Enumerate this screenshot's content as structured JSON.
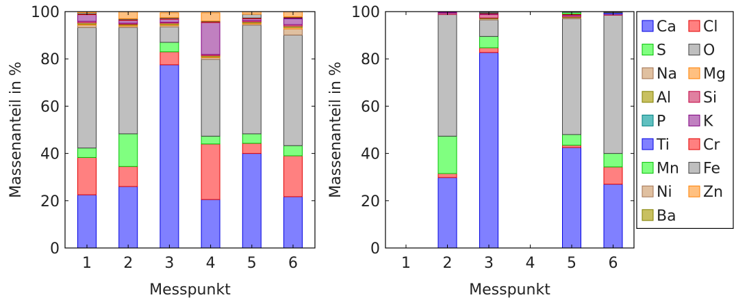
{
  "chart_data": [
    {
      "type": "bar",
      "stacked": true,
      "xlabel": "Messpunkt",
      "ylabel": "Massenanteil in %",
      "ylim": [
        0,
        100
      ],
      "yticks": [
        "0",
        "20",
        "40",
        "60",
        "80",
        "100"
      ],
      "categories": [
        "1",
        "2",
        "3",
        "4",
        "5",
        "6"
      ],
      "series": [
        {
          "name": "Ca",
          "values": [
            22.5,
            26,
            77.5,
            20.5,
            40,
            21.7
          ]
        },
        {
          "name": "Cl",
          "values": [
            15.8,
            8.5,
            5.5,
            23.5,
            4.3,
            17.3
          ]
        },
        {
          "name": "S",
          "values": [
            4,
            13.8,
            4,
            3.3,
            4,
            4.3
          ]
        },
        {
          "name": "O",
          "values": [
            51,
            45,
            6.5,
            32.5,
            46,
            46.8
          ]
        },
        {
          "name": "Na",
          "values": [
            1,
            0.6,
            0.7,
            0.8,
            0.5,
            2.6
          ]
        },
        {
          "name": "Mg",
          "values": [
            0.4,
            0.4,
            0.3,
            0.3,
            0.4,
            0.6
          ]
        },
        {
          "name": "Al",
          "values": [
            0.6,
            0.4,
            0.6,
            0.5,
            0.5,
            0.6
          ]
        },
        {
          "name": "Si",
          "values": [
            0.6,
            0.4,
            0.4,
            0.5,
            0.5,
            0.6
          ]
        },
        {
          "name": "P",
          "values": [
            0,
            0,
            0,
            0,
            0,
            0
          ]
        },
        {
          "name": "K",
          "values": [
            2.8,
            1.2,
            1.3,
            13.5,
            0.8,
            2.5
          ]
        },
        {
          "name": "Ti",
          "values": [
            0,
            0,
            0,
            0,
            0,
            0.2
          ]
        },
        {
          "name": "Cr",
          "values": [
            0.3,
            0.3,
            0.3,
            0.3,
            0.3,
            0.3
          ]
        },
        {
          "name": "Mn",
          "values": [
            0,
            0,
            0,
            0,
            0,
            0
          ]
        },
        {
          "name": "Fe",
          "values": [
            0.5,
            0.4,
            0.4,
            0.3,
            1.6,
            0.3
          ]
        },
        {
          "name": "Ni",
          "values": [
            0,
            0,
            0,
            0,
            0,
            0
          ]
        },
        {
          "name": "Zn",
          "values": [
            0.5,
            3,
            2,
            3.5,
            1.1,
            2.2
          ]
        },
        {
          "name": "Ba",
          "values": [
            0,
            0,
            0,
            0,
            0,
            0
          ]
        }
      ]
    },
    {
      "type": "bar",
      "stacked": true,
      "xlabel": "Messpunkt",
      "ylabel": "Massenanteil in %",
      "ylim": [
        0,
        100
      ],
      "yticks": [
        "0",
        "20",
        "40",
        "60",
        "80",
        "100"
      ],
      "categories": [
        "1",
        "2",
        "3",
        "4",
        "5",
        "6"
      ],
      "series": [
        {
          "name": "Ca",
          "values": [
            0,
            29.8,
            82.7,
            0,
            42.5,
            27
          ]
        },
        {
          "name": "Cl",
          "values": [
            0,
            1.7,
            2,
            0,
            1,
            7.3
          ]
        },
        {
          "name": "S",
          "values": [
            0,
            15.8,
            4.8,
            0,
            4.5,
            5.7
          ]
        },
        {
          "name": "O",
          "values": [
            0,
            51.5,
            7,
            0,
            49,
            58.5
          ]
        },
        {
          "name": "Na",
          "values": [
            0,
            0,
            0.5,
            0,
            0.5,
            0
          ]
        },
        {
          "name": "Mg",
          "values": [
            0,
            0,
            0,
            0,
            0,
            0
          ]
        },
        {
          "name": "Al",
          "values": [
            0,
            0,
            0.3,
            0,
            0.3,
            0
          ]
        },
        {
          "name": "Si",
          "values": [
            0,
            0.6,
            1.5,
            0,
            0.6,
            0.5
          ]
        },
        {
          "name": "P",
          "values": [
            0,
            0,
            0,
            0,
            0,
            0
          ]
        },
        {
          "name": "K",
          "values": [
            0,
            0.3,
            0.3,
            0,
            0.3,
            0
          ]
        },
        {
          "name": "Ti",
          "values": [
            0,
            0,
            0,
            0,
            0,
            0.5
          ]
        },
        {
          "name": "Cr",
          "values": [
            0,
            0,
            0.2,
            0,
            0.3,
            0
          ]
        },
        {
          "name": "Mn",
          "values": [
            0,
            0,
            0,
            0,
            0.7,
            0
          ]
        },
        {
          "name": "Fe",
          "values": [
            0,
            0,
            0.4,
            0,
            0.3,
            0.2
          ]
        },
        {
          "name": "Ni",
          "values": [
            0,
            0,
            0,
            0,
            0,
            0
          ]
        },
        {
          "name": "Zn",
          "values": [
            0,
            0,
            0,
            0,
            0,
            0
          ]
        },
        {
          "name": "Ba",
          "values": [
            0,
            0,
            0,
            0,
            0,
            0
          ]
        }
      ]
    }
  ],
  "legend": {
    "placement": "right",
    "columns": 2,
    "entries": [
      {
        "name": "Ca",
        "fill": "#8080ff",
        "stroke": "#0000e0"
      },
      {
        "name": "Cl",
        "fill": "#ff8080",
        "stroke": "#e00000"
      },
      {
        "name": "S",
        "fill": "#80ff80",
        "stroke": "#00c000"
      },
      {
        "name": "O",
        "fill": "#bfbfbf",
        "stroke": "#404040"
      },
      {
        "name": "Na",
        "fill": "#e0c0a0",
        "stroke": "#a07050"
      },
      {
        "name": "Mg",
        "fill": "#ffc080",
        "stroke": "#ff8000"
      },
      {
        "name": "Al",
        "fill": "#c8c060",
        "stroke": "#808000"
      },
      {
        "name": "Si",
        "fill": "#e080a0",
        "stroke": "#c00040"
      },
      {
        "name": "P",
        "fill": "#60c0c0",
        "stroke": "#008080"
      },
      {
        "name": "K",
        "fill": "#c080c0",
        "stroke": "#800080"
      },
      {
        "name": "Ti",
        "fill": "#8080ff",
        "stroke": "#0000e0"
      },
      {
        "name": "Cr",
        "fill": "#ff8080",
        "stroke": "#e00000"
      },
      {
        "name": "Mn",
        "fill": "#80ff80",
        "stroke": "#00c000"
      },
      {
        "name": "Fe",
        "fill": "#bfbfbf",
        "stroke": "#404040"
      },
      {
        "name": "Ni",
        "fill": "#e0c0a0",
        "stroke": "#a07050"
      },
      {
        "name": "Zn",
        "fill": "#ffc080",
        "stroke": "#ff8000"
      },
      {
        "name": "Ba",
        "fill": "#c8c060",
        "stroke": "#808000"
      }
    ]
  }
}
